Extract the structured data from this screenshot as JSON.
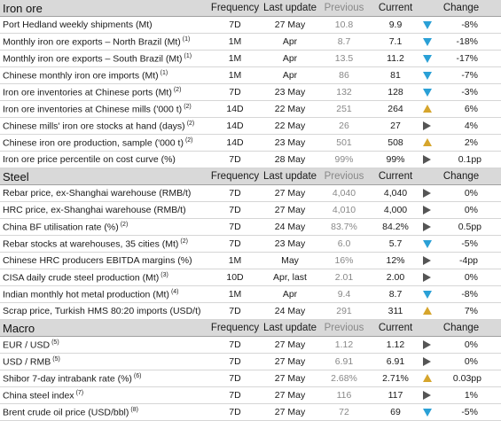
{
  "headers": {
    "frequency": "Frequency",
    "last_update": "Last update",
    "previous": "Previous",
    "current": "Current",
    "change": "Change"
  },
  "sections": [
    {
      "title": "Iron ore",
      "rows": [
        {
          "name": "Port Hedland weekly shipments (Mt)",
          "sup": "",
          "freq": "7D",
          "update": "27 May",
          "prev": "10.8",
          "curr": "9.9",
          "dir": "down",
          "change": "-8%"
        },
        {
          "name": "Monthly iron ore exports – North Brazil (Mt)",
          "sup": "(1)",
          "freq": "1M",
          "update": "Apr",
          "prev": "8.7",
          "curr": "7.1",
          "dir": "down",
          "change": "-18%"
        },
        {
          "name": "Monthly iron ore exports – South Brazil (Mt)",
          "sup": "(1)",
          "freq": "1M",
          "update": "Apr",
          "prev": "13.5",
          "curr": "11.2",
          "dir": "down",
          "change": "-17%"
        },
        {
          "name": "Chinese monthly iron ore imports (Mt)",
          "sup": "(1)",
          "freq": "1M",
          "update": "Apr",
          "prev": "86",
          "curr": "81",
          "dir": "down",
          "change": "-7%"
        },
        {
          "name": "Iron ore inventories at Chinese ports (Mt)",
          "sup": "(2)",
          "freq": "7D",
          "update": "23 May",
          "prev": "132",
          "curr": "128",
          "dir": "down",
          "change": "-3%"
        },
        {
          "name": "Iron ore inventories at Chinese mills ('000 t)",
          "sup": "(2)",
          "freq": "14D",
          "update": "22 May",
          "prev": "251",
          "curr": "264",
          "dir": "up",
          "change": "6%"
        },
        {
          "name": "Chinese mills' iron ore stocks at hand (days)",
          "sup": "(2)",
          "freq": "14D",
          "update": "22 May",
          "prev": "26",
          "curr": "27",
          "dir": "flat",
          "change": "4%"
        },
        {
          "name": "Chinese iron ore production, sample ('000 t)",
          "sup": "(2)",
          "freq": "14D",
          "update": "23 May",
          "prev": "501",
          "curr": "508",
          "dir": "up",
          "change": "2%"
        },
        {
          "name": "Iron ore price percentile on cost curve (%)",
          "sup": "",
          "freq": "7D",
          "update": "28 May",
          "prev": "99%",
          "curr": "99%",
          "dir": "flat",
          "change": "0.1pp"
        }
      ]
    },
    {
      "title": "Steel",
      "rows": [
        {
          "name": "Rebar price, ex-Shanghai warehouse (RMB/t)",
          "sup": "",
          "freq": "7D",
          "update": "27 May",
          "prev": "4,040",
          "curr": "4,040",
          "dir": "flat",
          "change": "0%"
        },
        {
          "name": "HRC price, ex-Shanghai warehouse (RMB/t)",
          "sup": "",
          "freq": "7D",
          "update": "27 May",
          "prev": "4,010",
          "curr": "4,000",
          "dir": "flat",
          "change": "0%"
        },
        {
          "name": "China BF utilisation rate (%)",
          "sup": "(2)",
          "freq": "7D",
          "update": "24 May",
          "prev": "83.7%",
          "curr": "84.2%",
          "dir": "flat",
          "change": "0.5pp"
        },
        {
          "name": "Rebar stocks at warehouses, 35 cities (Mt)",
          "sup": "(2)",
          "freq": "7D",
          "update": "23 May",
          "prev": "6.0",
          "curr": "5.7",
          "dir": "down",
          "change": "-5%"
        },
        {
          "name": "Chinese HRC producers EBITDA margins (%)",
          "sup": "",
          "freq": "1M",
          "update": "May",
          "prev": "16%",
          "curr": "12%",
          "dir": "flat",
          "change": "-4pp"
        },
        {
          "name": "CISA daily crude steel production (Mt)",
          "sup": "(3)",
          "freq": "10D",
          "update": "Apr, last",
          "prev": "2.01",
          "curr": "2.00",
          "dir": "flat",
          "change": "0%"
        },
        {
          "name": "Indian monthly hot metal production (Mt)",
          "sup": "(4)",
          "freq": "1M",
          "update": "Apr",
          "prev": "9.4",
          "curr": "8.7",
          "dir": "down",
          "change": "-8%"
        },
        {
          "name": "Scrap price, Turkish HMS 80:20 imports (USD/t)",
          "sup": "",
          "freq": "7D",
          "update": "24 May",
          "prev": "291",
          "curr": "311",
          "dir": "up",
          "change": "7%"
        }
      ]
    },
    {
      "title": "Macro",
      "rows": [
        {
          "name": "EUR / USD",
          "sup": "(5)",
          "freq": "7D",
          "update": "27 May",
          "prev": "1.12",
          "curr": "1.12",
          "dir": "flat",
          "change": "0%"
        },
        {
          "name": "USD / RMB",
          "sup": "(5)",
          "freq": "7D",
          "update": "27 May",
          "prev": "6.91",
          "curr": "6.91",
          "dir": "flat",
          "change": "0%"
        },
        {
          "name": "Shibor 7-day intrabank rate (%)",
          "sup": "(6)",
          "freq": "7D",
          "update": "27 May",
          "prev": "2.68%",
          "curr": "2.71%",
          "dir": "up",
          "change": "0.03pp"
        },
        {
          "name": "China steel index",
          "sup": "(7)",
          "freq": "7D",
          "update": "27 May",
          "prev": "116",
          "curr": "117",
          "dir": "flat",
          "change": "1%"
        },
        {
          "name": "Brent crude oil price (USD/bbl)",
          "sup": "(8)",
          "freq": "7D",
          "update": "27 May",
          "prev": "72",
          "curr": "69",
          "dir": "down",
          "change": "-5%"
        }
      ]
    }
  ],
  "colors": {
    "down": "#2aa0d6",
    "up": "#d6a52c",
    "flat": "#555555",
    "section_bg": "#d9d9d9"
  },
  "icons": {
    "down": "triangle-down-icon",
    "up": "triangle-up-icon",
    "flat": "triangle-right-icon"
  }
}
